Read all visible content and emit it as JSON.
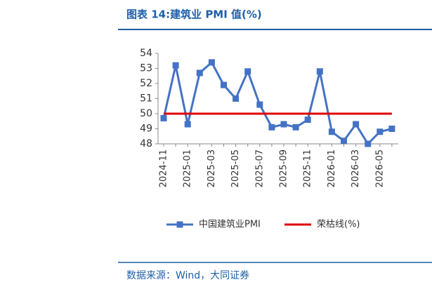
{
  "chart_data": {
    "type": "line",
    "title": "图表 14:建筑业 PMI 值(%)",
    "source": "数据来源：Wind，大同证券",
    "categories": [
      "2024-11",
      null,
      "2025-01",
      null,
      "2025-03",
      null,
      "2025-05",
      null,
      "2025-07",
      null,
      "2025-09",
      null,
      "2025-11",
      null,
      "2026-01",
      null,
      "2026-03",
      null,
      "2026-05",
      null
    ],
    "series": [
      {
        "name": "中国建筑业PMI",
        "color": "#4472c4",
        "marker": "square",
        "values": [
          49.7,
          53.2,
          49.3,
          52.7,
          53.4,
          51.9,
          51.0,
          52.8,
          50.6,
          49.1,
          49.3,
          49.1,
          49.6,
          52.8,
          48.8,
          48.2,
          49.3,
          48.0,
          48.8,
          49.0
        ]
      },
      {
        "name": "荣枯线(%)",
        "color": "#e00000",
        "values": [
          50,
          50,
          50,
          50,
          50,
          50,
          50,
          50,
          50,
          50,
          50,
          50,
          50,
          50,
          50,
          50,
          50,
          50,
          50,
          50
        ]
      }
    ],
    "ylim": [
      48,
      54
    ],
    "yticks": [
      48,
      49,
      50,
      51,
      52,
      53,
      54
    ],
    "grid": false
  }
}
